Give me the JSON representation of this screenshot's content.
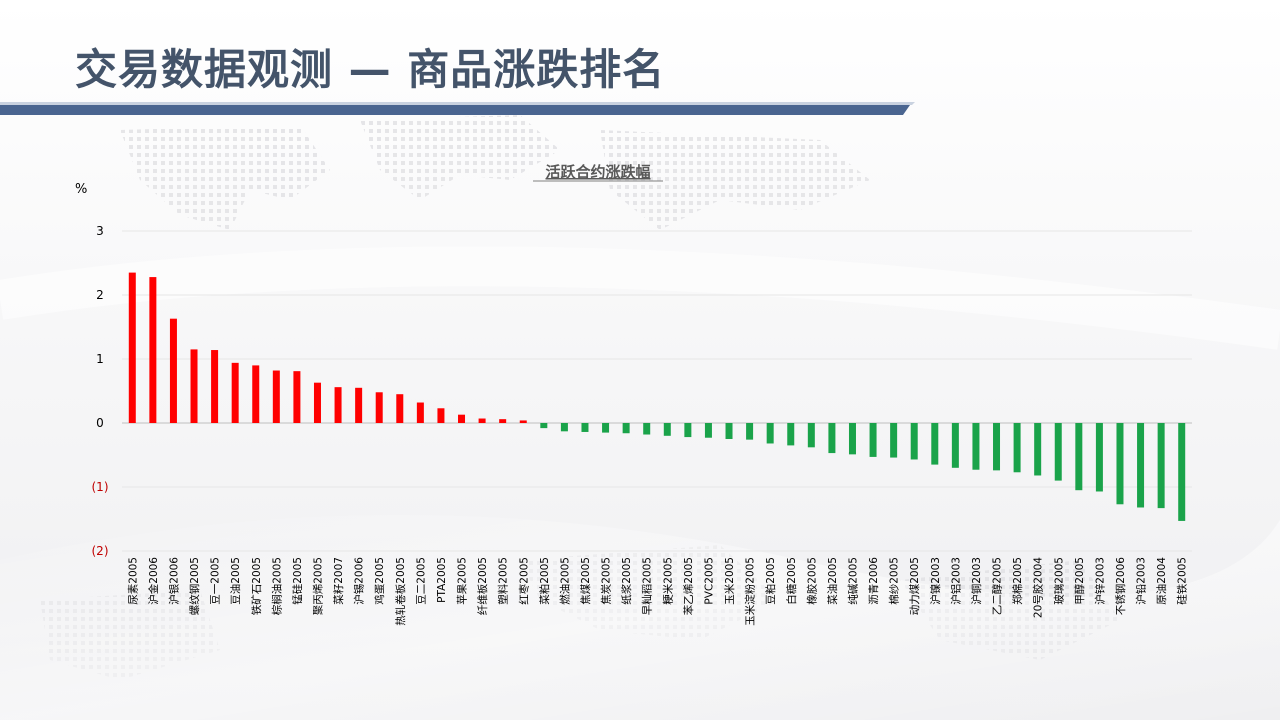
{
  "page": {
    "title": "交易数据观测 — 商品涨跌排名",
    "title_color": "#44546a",
    "bar_color": "#4a6590"
  },
  "chart_data": {
    "type": "bar",
    "title": "活跃合约涨跌幅",
    "ylabel": "%",
    "ylim": [
      -2,
      3
    ],
    "y_ticks": [
      {
        "value": 3,
        "label": "3"
      },
      {
        "value": 2,
        "label": "2"
      },
      {
        "value": 1,
        "label": "1"
      },
      {
        "value": 0,
        "label": "0"
      },
      {
        "value": -1,
        "label": "(1)"
      },
      {
        "value": -2,
        "label": "(2)"
      }
    ],
    "grid": true,
    "positive_color": "#ff0000",
    "negative_color": "#1aa34a",
    "negative_label_color": "#c00000",
    "categories": [
      "尿素2005",
      "沪金2006",
      "沪银2006",
      "螺纹钢2005",
      "豆一2005",
      "豆油2005",
      "铁矿石2005",
      "棕榈油2005",
      "锰硅2005",
      "聚丙烯2005",
      "菜籽2007",
      "沪锡2006",
      "鸡蛋2005",
      "热轧卷板2005",
      "豆二2005",
      "PTA2005",
      "苹果2005",
      "纤维板2005",
      "塑料2005",
      "红枣2005",
      "菜粕2005",
      "燃油2005",
      "焦煤2005",
      "焦炭2005",
      "纸浆2005",
      "早籼稻2005",
      "粳米2005",
      "苯乙烯2005",
      "PVC2005",
      "玉米2005",
      "玉米淀粉2005",
      "豆粕2005",
      "白糖2005",
      "橡胶2005",
      "菜油2005",
      "纯碱2005",
      "沥青2006",
      "棉纱2005",
      "动力煤2005",
      "沪镍2003",
      "沪铝2003",
      "沪铜2003",
      "乙二醇2005",
      "郑棉2005",
      "20号胶2004",
      "玻璃2005",
      "甲醇2005",
      "沪锌2003",
      "不锈钢2006",
      "沪铅2003",
      "原油2004",
      "硅铁2005"
    ],
    "values": [
      2.35,
      2.28,
      1.63,
      1.15,
      1.14,
      0.94,
      0.9,
      0.82,
      0.81,
      0.63,
      0.56,
      0.55,
      0.48,
      0.45,
      0.32,
      0.23,
      0.13,
      0.07,
      0.06,
      0.04,
      -0.08,
      -0.13,
      -0.14,
      -0.15,
      -0.16,
      -0.18,
      -0.2,
      -0.22,
      -0.23,
      -0.25,
      -0.26,
      -0.32,
      -0.35,
      -0.38,
      -0.47,
      -0.49,
      -0.53,
      -0.54,
      -0.57,
      -0.65,
      -0.7,
      -0.73,
      -0.74,
      -0.77,
      -0.82,
      -0.9,
      -1.05,
      -1.07,
      -1.27,
      -1.32,
      -1.33,
      -1.53
    ]
  }
}
